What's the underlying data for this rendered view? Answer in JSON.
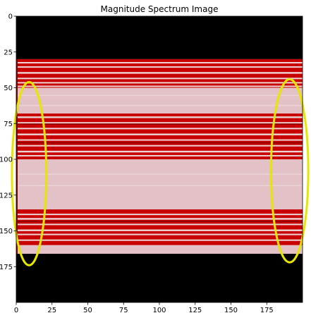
{
  "chart_data": {
    "type": "heatmap",
    "title": "Magnitude Spectrum Image",
    "xlabel": "",
    "ylabel": "",
    "xlim": [
      0,
      200
    ],
    "ylim": [
      200,
      0
    ],
    "grid": false,
    "x_ticks": [
      0,
      25,
      50,
      75,
      100,
      125,
      150,
      175
    ],
    "y_ticks": [
      0,
      25,
      50,
      75,
      100,
      125,
      150,
      175
    ],
    "x_tick_labels": [
      "0",
      "25",
      "50",
      "75",
      "100",
      "125",
      "150",
      "175"
    ],
    "y_tick_labels": [
      "0",
      "25",
      "50",
      "75",
      "100",
      "125",
      "150",
      "175"
    ],
    "colors": {
      "black": "#000000",
      "red": "#c80000",
      "dark_red": "#8e0000",
      "pale": "#e2c2c6",
      "pale_light": "#ecd2d5",
      "highlight": "#e6e600"
    },
    "regions": [
      {
        "y0": 0,
        "y1": 30,
        "fill": "black"
      },
      {
        "y0": 30,
        "y1": 50,
        "fill": "red"
      },
      {
        "y0": 50,
        "y1": 68,
        "fill": "pale"
      },
      {
        "y0": 68,
        "y1": 100,
        "fill": "red"
      },
      {
        "y0": 100,
        "y1": 135,
        "fill": "pale"
      },
      {
        "y0": 135,
        "y1": 160,
        "fill": "red"
      },
      {
        "y0": 160,
        "y1": 166,
        "fill": "pale"
      },
      {
        "y0": 166,
        "y1": 200,
        "fill": "black"
      }
    ],
    "stripes": [
      {
        "y": 32,
        "h": 1.0,
        "fill": "pale_light"
      },
      {
        "y": 35,
        "h": 1.0,
        "fill": "pale_light"
      },
      {
        "y": 39,
        "h": 1.2,
        "fill": "pale_light"
      },
      {
        "y": 43,
        "h": 1.0,
        "fill": "pale_light"
      },
      {
        "y": 46,
        "h": 1.0,
        "fill": "pale_light"
      },
      {
        "y": 48.5,
        "h": 1.0,
        "fill": "pale_light"
      },
      {
        "y": 55,
        "h": 0.8,
        "fill": "pale_light"
      },
      {
        "y": 62,
        "h": 0.8,
        "fill": "pale_light"
      },
      {
        "y": 70,
        "h": 1.2,
        "fill": "pale_light"
      },
      {
        "y": 74,
        "h": 1.0,
        "fill": "pale_light"
      },
      {
        "y": 78,
        "h": 1.0,
        "fill": "pale_light"
      },
      {
        "y": 82,
        "h": 1.2,
        "fill": "pale_light"
      },
      {
        "y": 86,
        "h": 1.0,
        "fill": "pale_light"
      },
      {
        "y": 90,
        "h": 1.0,
        "fill": "pale_light"
      },
      {
        "y": 94,
        "h": 1.2,
        "fill": "pale_light"
      },
      {
        "y": 97,
        "h": 1.0,
        "fill": "pale_light"
      },
      {
        "y": 110,
        "h": 0.8,
        "fill": "pale_light"
      },
      {
        "y": 118,
        "h": 0.8,
        "fill": "pale_light"
      },
      {
        "y": 138,
        "h": 1.0,
        "fill": "pale_light"
      },
      {
        "y": 141,
        "h": 1.2,
        "fill": "pale_light"
      },
      {
        "y": 145,
        "h": 1.0,
        "fill": "pale_light"
      },
      {
        "y": 149,
        "h": 1.2,
        "fill": "pale_light"
      },
      {
        "y": 152,
        "h": 1.0,
        "fill": "pale_light"
      },
      {
        "y": 156,
        "h": 1.0,
        "fill": "pale_light"
      },
      {
        "y": 75,
        "h": 0.8,
        "fill": "dark_red"
      },
      {
        "y": 88,
        "h": 0.8,
        "fill": "dark_red"
      },
      {
        "y": 143,
        "h": 0.8,
        "fill": "dark_red"
      }
    ],
    "annotations": [
      {
        "shape": "ellipse",
        "cx": 9,
        "cy": 110,
        "rx": 12,
        "ry": 64,
        "color": "highlight"
      },
      {
        "shape": "ellipse",
        "cx": 191,
        "cy": 108,
        "rx": 13,
        "ry": 64,
        "color": "highlight"
      }
    ]
  }
}
